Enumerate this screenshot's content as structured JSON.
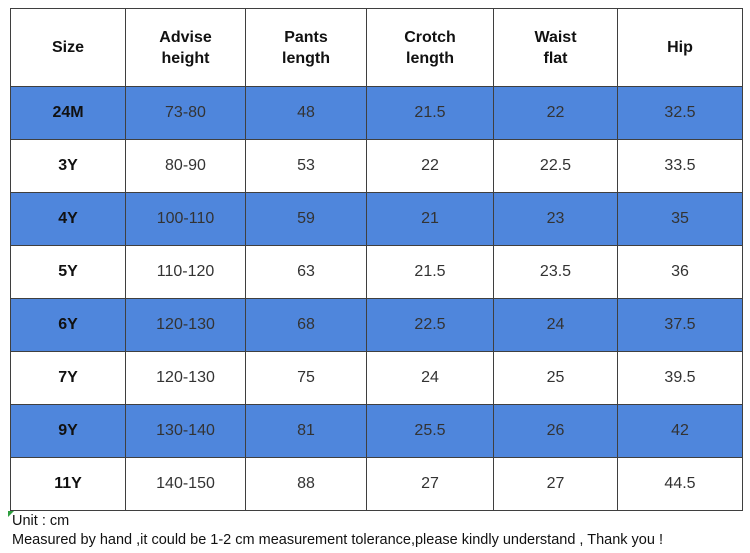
{
  "table": {
    "headers": [
      [
        "Size"
      ],
      [
        "Advise",
        "height"
      ],
      [
        "Pants",
        "length"
      ],
      [
        "Crotch",
        "length"
      ],
      [
        "Waist",
        "flat"
      ],
      [
        "Hip"
      ]
    ],
    "rows": [
      [
        "24M",
        "73-80",
        "48",
        "21.5",
        "22",
        "32.5"
      ],
      [
        "3Y",
        "80-90",
        "53",
        "22",
        "22.5",
        "33.5"
      ],
      [
        "4Y",
        "100-110",
        "59",
        "21",
        "23",
        "35"
      ],
      [
        "5Y",
        "110-120",
        "63",
        "21.5",
        "23.5",
        "36"
      ],
      [
        "6Y",
        "120-130",
        "68",
        "22.5",
        "24",
        "37.5"
      ],
      [
        "7Y",
        "120-130",
        "75",
        "24",
        "25",
        "39.5"
      ],
      [
        "9Y",
        "130-140",
        "81",
        "25.5",
        "26",
        "42"
      ],
      [
        "11Y",
        "140-150",
        "88",
        "27",
        "27",
        "44.5"
      ]
    ],
    "colors": {
      "band_blue": "#4f86dc",
      "band_white": "#ffffff",
      "border": "#3f3f3f"
    }
  },
  "footnote": {
    "unit": "Unit : cm",
    "note": "Measured by hand ,it could be 1-2 cm measurement tolerance,please kindly understand , Thank you !"
  }
}
